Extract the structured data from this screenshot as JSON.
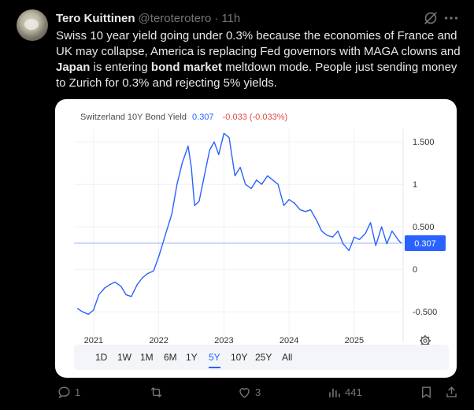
{
  "tweet": {
    "display_name": "Tero Kuittinen",
    "handle": "@teroterotero",
    "separator": "·",
    "time": "11h",
    "text_parts": [
      "Swiss 10 year yield going under 0.3% because the economies of France and UK may collapse, America is replacing Fed governors with MAGA clowns and ",
      "Japan",
      " is entering ",
      "bond market",
      " meltdown mode. People just sending money to Zurich for 0.3% and rejecting 5% yields."
    ]
  },
  "chart_data": {
    "type": "line",
    "title": "Switzerland 10Y Bond Yield",
    "last_value": "0.307",
    "change": "-0.033 (-0.033%)",
    "price_label": "0.307",
    "x_tick_labels": [
      "2021",
      "2022",
      "2023",
      "2024",
      "2025"
    ],
    "y_tick_labels": [
      "1.500",
      "1",
      "0.500",
      "0",
      "-0.500"
    ],
    "ylim": [
      -0.85,
      1.65
    ],
    "xlim": [
      2020.7,
      2025.75
    ],
    "series": [
      {
        "color": "#2962ff",
        "x": [
          2020.75,
          2020.83,
          2020.92,
          2021.0,
          2021.08,
          2021.17,
          2021.25,
          2021.33,
          2021.42,
          2021.5,
          2021.58,
          2021.67,
          2021.75,
          2021.83,
          2021.92,
          2022.0,
          2022.06,
          2022.12,
          2022.2,
          2022.28,
          2022.36,
          2022.45,
          2022.5,
          2022.55,
          2022.62,
          2022.7,
          2022.78,
          2022.85,
          2022.92,
          2023.0,
          2023.08,
          2023.17,
          2023.25,
          2023.33,
          2023.42,
          2023.5,
          2023.58,
          2023.67,
          2023.75,
          2023.83,
          2023.92,
          2024.0,
          2024.08,
          2024.17,
          2024.25,
          2024.33,
          2024.42,
          2024.5,
          2024.58,
          2024.67,
          2024.75,
          2024.83,
          2024.92,
          2025.0,
          2025.08,
          2025.17,
          2025.25,
          2025.33,
          2025.42,
          2025.5,
          2025.58,
          2025.67,
          2025.72
        ],
        "y": [
          -0.46,
          -0.5,
          -0.53,
          -0.48,
          -0.3,
          -0.22,
          -0.18,
          -0.15,
          -0.2,
          -0.3,
          -0.32,
          -0.18,
          -0.1,
          -0.05,
          -0.02,
          0.15,
          0.3,
          0.45,
          0.65,
          1.0,
          1.25,
          1.45,
          1.2,
          0.75,
          0.8,
          1.1,
          1.4,
          1.5,
          1.35,
          1.6,
          1.55,
          1.1,
          1.2,
          1.0,
          0.95,
          1.05,
          1.0,
          1.1,
          1.05,
          1.0,
          0.75,
          0.82,
          0.78,
          0.7,
          0.68,
          0.7,
          0.58,
          0.45,
          0.4,
          0.38,
          0.45,
          0.3,
          0.22,
          0.38,
          0.35,
          0.42,
          0.55,
          0.28,
          0.5,
          0.3,
          0.45,
          0.35,
          0.307
        ]
      }
    ]
  },
  "chart_controls": {
    "ranges": [
      "1D",
      "1W",
      "1M",
      "6M",
      "1Y",
      "5Y",
      "10Y",
      "25Y",
      "All"
    ],
    "selected": "5Y"
  },
  "actions": {
    "replies": "1",
    "retweets": "",
    "likes": "3",
    "views": "441"
  }
}
